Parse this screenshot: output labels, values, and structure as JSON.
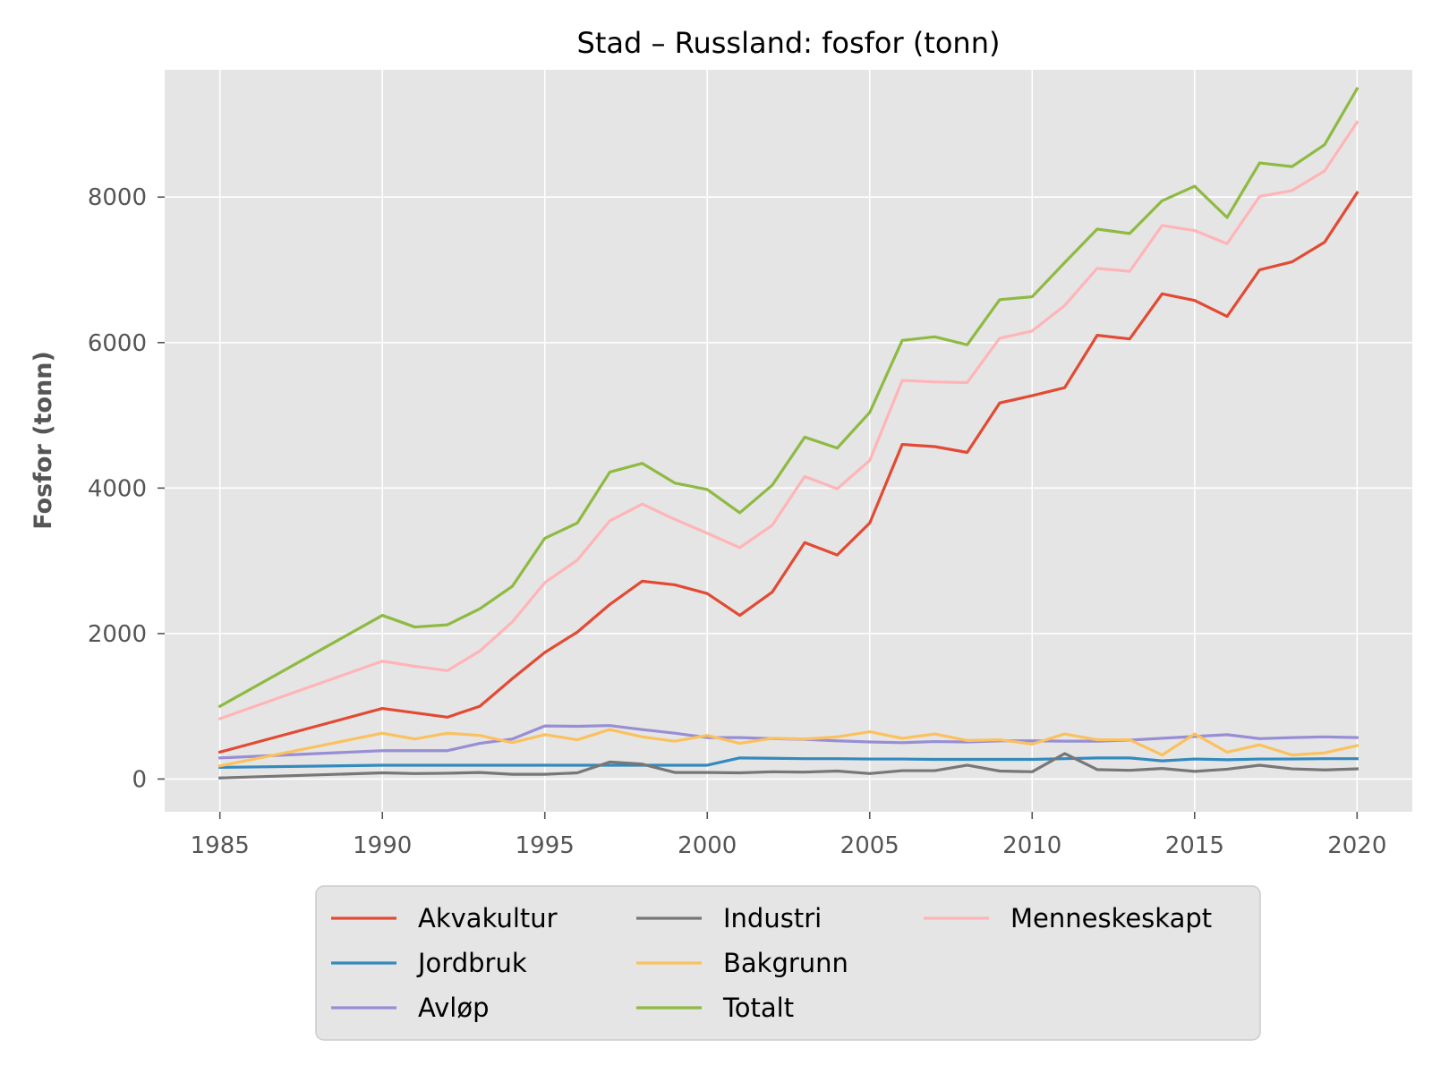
{
  "chart_data": {
    "type": "line",
    "title": "Stad – Russland: fosfor (tonn)",
    "xlabel": "",
    "ylabel": "Fosfor (tonn)",
    "xlim": [
      1983.3,
      2021.7
    ],
    "ylim": [
      -450,
      9750
    ],
    "xticks": [
      1985,
      1990,
      1995,
      2000,
      2005,
      2010,
      2015,
      2020
    ],
    "yticks": [
      0,
      2000,
      4000,
      6000,
      8000
    ],
    "grid": true,
    "legend_position": "bottom-center",
    "background": "#e5e5e5",
    "x": [
      1985,
      1990,
      1991,
      1992,
      1993,
      1994,
      1995,
      1996,
      1997,
      1998,
      1999,
      2000,
      2001,
      2002,
      2003,
      2004,
      2005,
      2006,
      2007,
      2008,
      2009,
      2010,
      2011,
      2012,
      2013,
      2014,
      2015,
      2016,
      2017,
      2018,
      2019,
      2020
    ],
    "series": [
      {
        "name": "Akvakultur",
        "color": "#E24A33",
        "values": [
          370,
          970,
          910,
          850,
          1000,
          1380,
          1740,
          2020,
          2400,
          2720,
          2670,
          2550,
          2250,
          2570,
          3250,
          3080,
          3520,
          4600,
          4570,
          4490,
          5170,
          5270,
          5380,
          6100,
          6050,
          6670,
          6580,
          6360,
          7000,
          7110,
          7380,
          8060
        ]
      },
      {
        "name": "Jordbruk",
        "color": "#348ABD",
        "values": [
          160,
          190,
          190,
          190,
          190,
          190,
          190,
          190,
          190,
          190,
          190,
          190,
          290,
          285,
          280,
          280,
          275,
          275,
          270,
          270,
          270,
          270,
          280,
          290,
          290,
          250,
          275,
          265,
          275,
          275,
          280,
          280
        ]
      },
      {
        "name": "Avløp",
        "color": "#988ED5",
        "values": [
          290,
          390,
          390,
          390,
          490,
          550,
          730,
          725,
          735,
          680,
          630,
          570,
          570,
          555,
          545,
          525,
          510,
          500,
          515,
          510,
          525,
          525,
          520,
          520,
          535,
          560,
          585,
          610,
          555,
          570,
          580,
          570
        ]
      },
      {
        "name": "Industri",
        "color": "#777777",
        "values": [
          15,
          85,
          75,
          80,
          90,
          65,
          65,
          85,
          235,
          205,
          90,
          90,
          85,
          100,
          95,
          110,
          75,
          115,
          115,
          190,
          110,
          100,
          350,
          130,
          120,
          145,
          105,
          135,
          190,
          140,
          125,
          140
        ]
      },
      {
        "name": "Bakgrunn",
        "color": "#FBC15E",
        "values": [
          180,
          630,
          550,
          630,
          600,
          500,
          610,
          540,
          680,
          580,
          520,
          600,
          490,
          560,
          550,
          580,
          650,
          560,
          620,
          530,
          540,
          480,
          620,
          540,
          540,
          330,
          620,
          370,
          470,
          330,
          360,
          460
        ]
      },
      {
        "name": "Totalt",
        "color": "#8EBA42",
        "values": [
          1000,
          2250,
          2090,
          2120,
          2340,
          2650,
          3310,
          3520,
          4220,
          4340,
          4070,
          3980,
          3660,
          4040,
          4700,
          4550,
          5040,
          6030,
          6080,
          5970,
          6590,
          6630,
          7100,
          7560,
          7500,
          7950,
          8150,
          7720,
          8470,
          8420,
          8720,
          9490
        ]
      },
      {
        "name": "Menneskeskapt",
        "color": "#FFB5B8",
        "values": [
          830,
          1620,
          1550,
          1490,
          1760,
          2160,
          2700,
          3010,
          3550,
          3780,
          3570,
          3380,
          3180,
          3490,
          4160,
          3990,
          4380,
          5480,
          5460,
          5450,
          6060,
          6160,
          6510,
          7020,
          6980,
          7610,
          7540,
          7360,
          8010,
          8090,
          8360,
          9030
        ]
      }
    ]
  }
}
